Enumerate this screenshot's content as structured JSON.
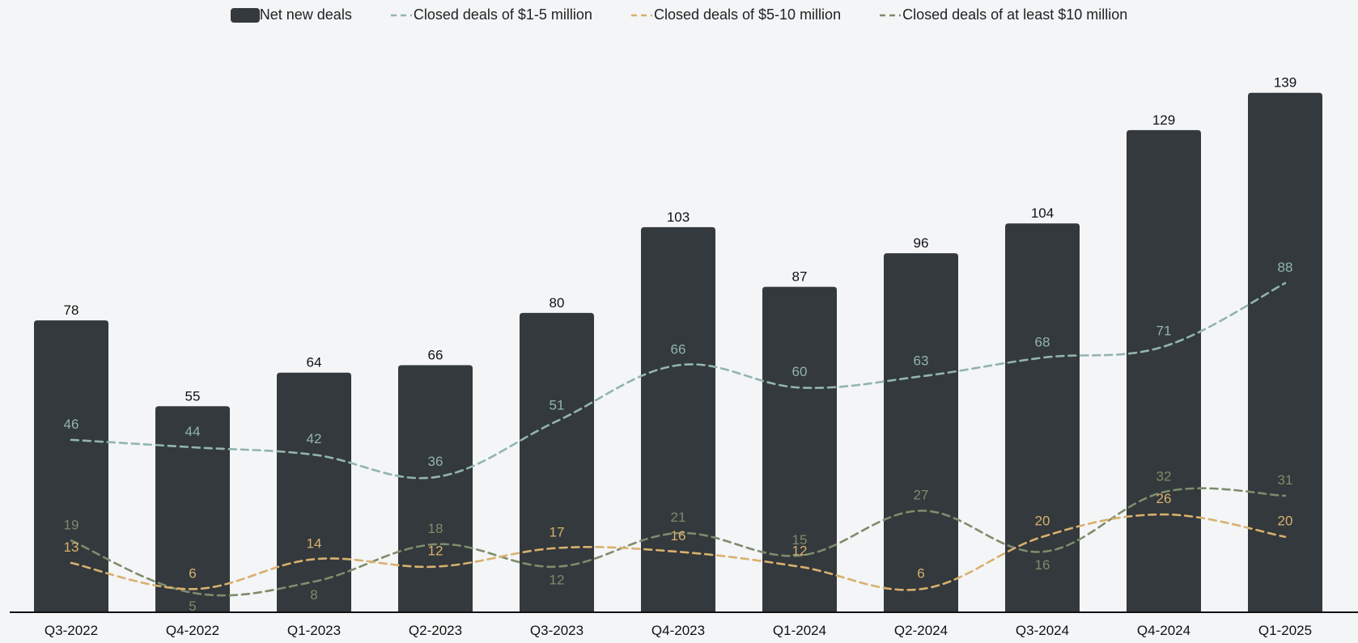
{
  "chart_data": {
    "type": "bar",
    "title": "",
    "xlabel": "",
    "ylabel": "",
    "ylim": [
      0,
      150
    ],
    "legend_position": "top-center",
    "categories": [
      "Q3-2022",
      "Q4-2022",
      "Q1-2023",
      "Q2-2023",
      "Q3-2023",
      "Q4-2023",
      "Q1-2024",
      "Q2-2024",
      "Q3-2024",
      "Q4-2024",
      "Q1-2025"
    ],
    "bar_series": {
      "name": "Net new deals",
      "color": "#33393c",
      "values": [
        78,
        55,
        64,
        66,
        80,
        103,
        87,
        96,
        104,
        129,
        139
      ]
    },
    "line_series": [
      {
        "name": "Closed deals of $1-5 million",
        "color": "#93b4ad",
        "values": [
          46,
          44,
          42,
          36,
          51,
          66,
          60,
          63,
          68,
          71,
          88
        ]
      },
      {
        "name": "Closed deals of $5-10 million",
        "color": "#d9b06e",
        "values": [
          13,
          6,
          14,
          12,
          17,
          16,
          12,
          6,
          20,
          26,
          20
        ]
      },
      {
        "name": "Closed deals of at least $10 million",
        "color": "#7d8c6c",
        "values": [
          19,
          5,
          8,
          18,
          12,
          21,
          15,
          27,
          16,
          32,
          31
        ]
      }
    ]
  }
}
